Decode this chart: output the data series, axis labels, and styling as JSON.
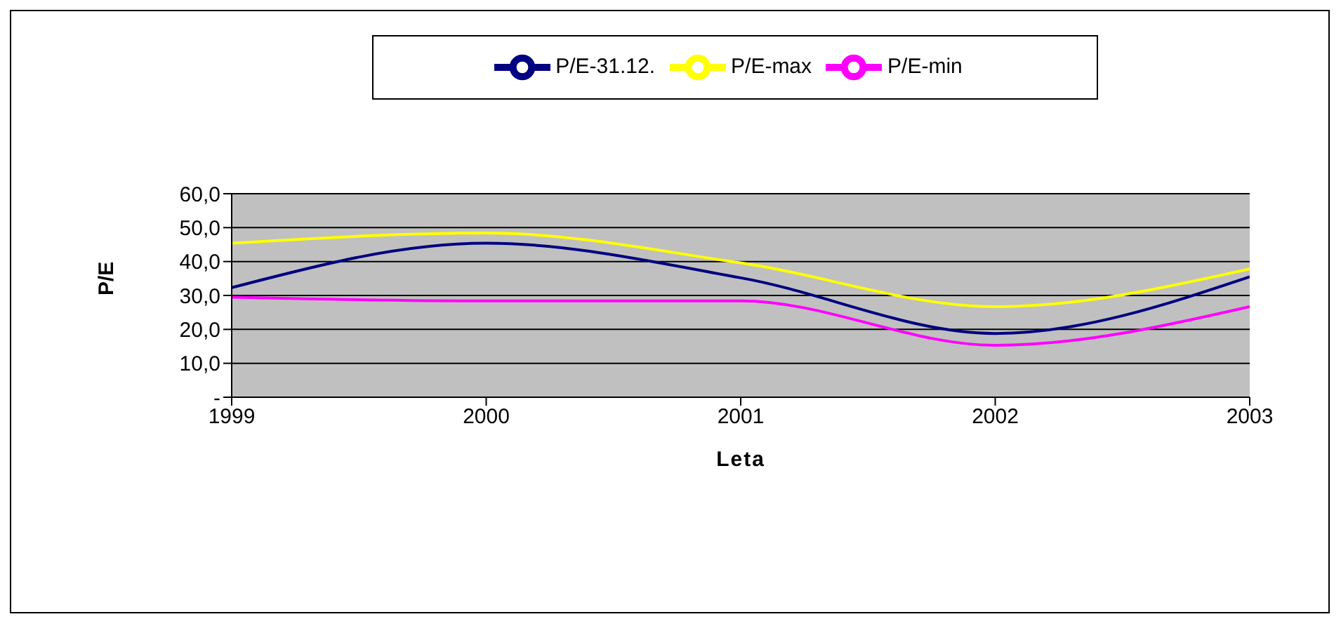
{
  "chart_data": {
    "type": "line",
    "xlabel": "Leta",
    "ylabel": "P/E",
    "categories": [
      "1999",
      "2000",
      "2001",
      "2002",
      "2003"
    ],
    "series": [
      {
        "name": "P/E-31.12.",
        "color": "#000080",
        "values": [
          32.3,
          45.4,
          35.2,
          18.8,
          35.5
        ]
      },
      {
        "name": "P/E-min",
        "color": "#ff00ff",
        "values": [
          29.5,
          28.4,
          28.4,
          15.3,
          26.7
        ]
      },
      {
        "name": "P/E-max",
        "color": "#ffff00",
        "values": [
          45.4,
          48.4,
          39.6,
          26.7,
          37.8
        ]
      }
    ],
    "ylim": [
      0,
      60
    ],
    "yticks": [
      {
        "value": 0,
        "label": "-"
      },
      {
        "value": 10,
        "label": "10,0"
      },
      {
        "value": 20,
        "label": "20,0"
      },
      {
        "value": 30,
        "label": "30,0"
      },
      {
        "value": 40,
        "label": "40,0"
      },
      {
        "value": 50,
        "label": "50,0"
      },
      {
        "value": 60,
        "label": "60,0"
      }
    ],
    "grid": "y",
    "legend": "top",
    "marker": "none",
    "line_style": "solid"
  }
}
